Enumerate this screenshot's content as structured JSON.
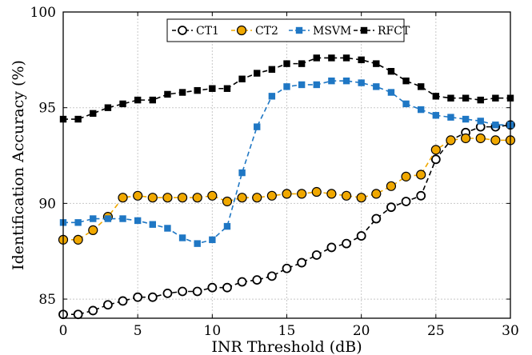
{
  "chart_data": {
    "type": "line",
    "xlabel": "INR Threshold (dB)",
    "ylabel": "Identification Accuracy (%)",
    "xlim": [
      0,
      30
    ],
    "ylim": [
      84,
      100
    ],
    "xticks": [
      "0",
      "5",
      "10",
      "15",
      "20",
      "25",
      "30"
    ],
    "yticks": [
      "85",
      "90",
      "95",
      "100"
    ],
    "grid": true,
    "legend_position": "top-center",
    "x": [
      0,
      1,
      2,
      3,
      4,
      5,
      6,
      7,
      8,
      9,
      10,
      11,
      12,
      13,
      14,
      15,
      16,
      17,
      18,
      19,
      20,
      21,
      22,
      23,
      24,
      25,
      26,
      27,
      28,
      29,
      30
    ],
    "series": [
      {
        "name": "CT1",
        "color": "#000000",
        "marker": "circle-open",
        "values": [
          84.2,
          84.2,
          84.4,
          84.7,
          84.9,
          85.1,
          85.1,
          85.3,
          85.4,
          85.4,
          85.6,
          85.6,
          85.9,
          86.0,
          86.2,
          86.6,
          86.9,
          87.3,
          87.7,
          87.9,
          88.3,
          89.2,
          89.8,
          90.1,
          90.4,
          92.3,
          93.3,
          93.7,
          94.0,
          94.0,
          94.1
        ]
      },
      {
        "name": "CT2",
        "color": "#f0a800",
        "marker": "circle-filled",
        "values": [
          88.1,
          88.1,
          88.6,
          89.3,
          90.3,
          90.4,
          90.3,
          90.3,
          90.3,
          90.3,
          90.4,
          90.1,
          90.3,
          90.3,
          90.4,
          90.5,
          90.5,
          90.6,
          90.5,
          90.4,
          90.3,
          90.5,
          90.9,
          91.4,
          91.5,
          92.8,
          93.3,
          93.4,
          93.4,
          93.3,
          93.3
        ]
      },
      {
        "name": "MSVM",
        "color": "#1f77c4",
        "marker": "square-filled",
        "values": [
          89.0,
          89.0,
          89.2,
          89.2,
          89.2,
          89.1,
          88.9,
          88.7,
          88.2,
          87.9,
          88.1,
          88.8,
          91.6,
          94.0,
          95.6,
          96.1,
          96.2,
          96.2,
          96.4,
          96.4,
          96.3,
          96.1,
          95.8,
          95.2,
          94.9,
          94.6,
          94.5,
          94.4,
          94.3,
          94.1,
          94.1
        ]
      },
      {
        "name": "RFCT",
        "color": "#000000",
        "marker": "square-filled",
        "values": [
          94.4,
          94.4,
          94.7,
          95.0,
          95.2,
          95.4,
          95.4,
          95.7,
          95.8,
          95.9,
          96.0,
          96.0,
          96.5,
          96.8,
          97.0,
          97.3,
          97.3,
          97.6,
          97.6,
          97.6,
          97.5,
          97.3,
          96.9,
          96.4,
          96.1,
          95.6,
          95.5,
          95.5,
          95.4,
          95.5,
          95.5
        ]
      }
    ]
  }
}
